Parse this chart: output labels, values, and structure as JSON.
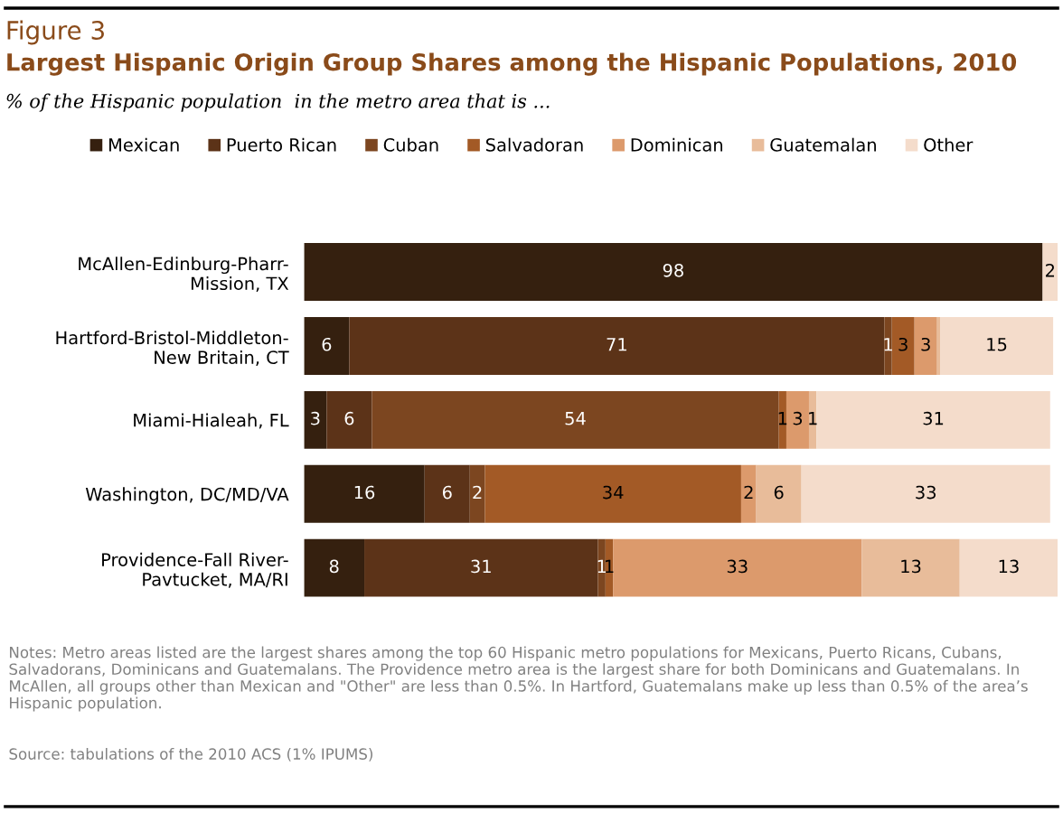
{
  "chart_data": {
    "type": "bar",
    "orientation": "horizontal",
    "stacked": true,
    "title": "Largest Hispanic Origin Group Shares among the Hispanic Populations, 2010",
    "subtitle": "% of the Hispanic population  in the metro area that is ...",
    "categories": [
      "McAllen-Edinburg-Pharr-\nMission, TX",
      "Hartford-Bristol-Middleton-\nNew Britain, CT",
      "Miami-Hialeah, FL",
      "Washington, DC/MD/VA",
      "Providence-Fall River-\nPavtucket, MA/RI"
    ],
    "series": [
      {
        "name": "Mexican",
        "color": "#35200f",
        "values": [
          98,
          6,
          3,
          16,
          8
        ],
        "value_labels": [
          "98",
          "6",
          "3",
          "16",
          "8"
        ]
      },
      {
        "name": "Puerto Rican",
        "color": "#5c3318",
        "values": [
          null,
          71,
          6,
          6,
          31
        ],
        "value_labels": [
          null,
          "71",
          "6",
          "6",
          "31"
        ]
      },
      {
        "name": "Cuban",
        "color": "#7c4620",
        "values": [
          null,
          1,
          54,
          2,
          1
        ],
        "value_labels": [
          null,
          "1",
          "54",
          "2",
          "1"
        ]
      },
      {
        "name": "Salvadoran",
        "color": "#a35a26",
        "values": [
          null,
          3,
          1,
          34,
          1
        ],
        "value_labels": [
          null,
          "3",
          "1",
          "34",
          "1"
        ]
      },
      {
        "name": "Dominican",
        "color": "#dc9a6c",
        "values": [
          null,
          3,
          3,
          2,
          33
        ],
        "value_labels": [
          null,
          "3",
          "3",
          "2",
          "33"
        ]
      },
      {
        "name": "Guatemalan",
        "color": "#e8bc9a",
        "values": [
          null,
          0.4,
          1,
          6,
          13
        ],
        "value_labels": [
          null,
          null,
          "1",
          "6",
          "13"
        ]
      },
      {
        "name": "Other",
        "color": "#f4dccb",
        "values": [
          2,
          15,
          31,
          33,
          13
        ],
        "value_labels": [
          "2",
          "15",
          "31",
          "33",
          "13"
        ]
      }
    ],
    "legend": "top",
    "grid": false,
    "annotations": [
      "Figure 3",
      "Notes: Metro areas listed are the largest shares among the top 60 Hispanic metro populations for Mexicans, Puerto Ricans, Cubans, Salvadorans, Dominicans and Guatemalans. The Providence metro area is the largest share for both Dominicans and Guatemalans. In McAllen, all groups other than Mexican and \"Other\" are less than 0.5%. In Hartford, Guatemalans make up less than 0.5% of the area’s Hispanic population.",
      "Source: tabulations of the 2010 ACS (1% IPUMS)"
    ]
  }
}
